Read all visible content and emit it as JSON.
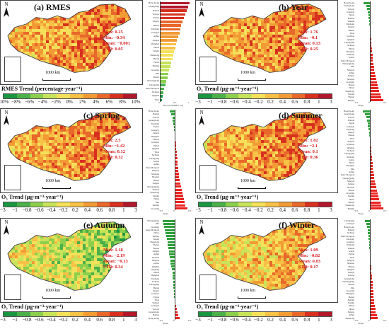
{
  "colors": {
    "trend_scale": [
      "#1a9641",
      "#4bb04a",
      "#8ccf4d",
      "#c6e35a",
      "#f5e05a",
      "#f7c046",
      "#f29b35",
      "#e8672a",
      "#d7301f",
      "#b2182b"
    ],
    "bar_positive": "#e8231f",
    "bar_negative": "#2e9e3a",
    "stats_text": "#d7191c"
  },
  "icons": {
    "north_arrow": "north-arrow-icon",
    "scale_bar": "scale-bar-icon"
  },
  "north_label": "N",
  "scale_label": "1000 km",
  "panels": [
    {
      "id": "a",
      "title": "(a) RMES",
      "stats": [
        "Max: 0.25",
        "Min: −0.34",
        "Mean: −0.001",
        "STD: 0.05"
      ],
      "legend_title": "RMES Trend (percentage·year⁻¹)",
      "ticks": [
        "−10%",
        "−8%",
        "−6%",
        "−4%",
        "−2%",
        "0%",
        "2%",
        "4%",
        "6%",
        "8%",
        "10%"
      ],
      "bar_xlabel": "The total RMES (%)",
      "bar_axis_ticks": [
        "0",
        "0.5",
        "1"
      ],
      "chart_data": {
        "type": "bar",
        "categories": [
          "Hong Kong",
          "Guangdong",
          "Hainan",
          "Taiwan",
          "Fujian",
          "Jiangxi",
          "Hunan",
          "Zhejiang",
          "Guangxi",
          "Anhui",
          "Jiangsu",
          "Shanghai",
          "Hubei",
          "Tianjin",
          "Shandong",
          "Henan",
          "Hebei",
          "Beijing",
          "Liaoning",
          "Jilin",
          "Shanxi",
          "Heilongjiang",
          "Chongqing",
          "Inner Mongolia",
          "Sichuan",
          "Qinghai",
          "Tibet"
        ],
        "values": [
          1.0,
          0.95,
          0.9,
          0.85,
          0.8,
          0.76,
          0.72,
          0.7,
          0.66,
          0.62,
          0.58,
          0.55,
          0.52,
          0.48,
          0.45,
          0.42,
          0.38,
          0.35,
          0.32,
          0.28,
          0.25,
          0.22,
          0.18,
          0.15,
          0.12,
          0.1,
          0.08
        ],
        "series_color": "gradient"
      }
    },
    {
      "id": "b",
      "title": "(b) Year",
      "stats": [
        "Max: 1.76",
        "Min: −0.1",
        "Mean: 0.13",
        "STD: 0.25"
      ],
      "legend_title": "O₃ Trend (μg·m⁻³·year⁻¹)",
      "ticks": [
        "−3",
        "−1",
        "−0.8",
        "−0.6",
        "−0.4",
        "−0.2",
        "0.2",
        "0.4",
        "0.6",
        "0.8",
        "1",
        "3"
      ],
      "bar_xlabel": "Slope",
      "bar_axis_ticks": [
        "−0.5",
        "0",
        "0.5"
      ],
      "chart_data": {
        "type": "bar",
        "categories": [
          "Hong Kong",
          "Guangdong",
          "Taiwan",
          "Guangxi",
          "Fujian",
          "Hainan",
          "Yunnan",
          "Zhejiang",
          "Jiangxi",
          "Hunan",
          "Tibet",
          "Guizhou",
          "Qinghai",
          "Chongqing",
          "Sichuan",
          "Hubei",
          "Shanghai",
          "Xinjiang",
          "Gansu",
          "Inner Mongolia",
          "Heilongjiang",
          "Jilin",
          "Ningxia",
          "Anhui",
          "Jiangsu",
          "Shaanxi",
          "Liaoning",
          "Henan",
          "Hebei",
          "Shandong",
          "Tianjin",
          "Shanxi",
          "Beijing"
        ],
        "values": [
          -0.25,
          -0.15,
          -0.12,
          -0.08,
          -0.06,
          -0.05,
          -0.03,
          -0.02,
          -0.01,
          0.02,
          0.03,
          0.04,
          0.05,
          0.06,
          0.07,
          0.08,
          0.09,
          0.1,
          0.11,
          0.12,
          0.14,
          0.16,
          0.18,
          0.2,
          0.22,
          0.25,
          0.28,
          0.3,
          0.34,
          0.38,
          0.42,
          0.45,
          0.55
        ]
      }
    },
    {
      "id": "c",
      "title": "(c) Spring",
      "stats": [
        "Max: 2.5",
        "Min: −1.42",
        "Mean: 0.12",
        "STD: 0.32"
      ],
      "legend_title": "O₃ Trend (μg·m⁻³·year⁻¹)",
      "ticks": [
        "−3",
        "−1",
        "−0.8",
        "−0.6",
        "−0.4",
        "−0.2",
        "0.2",
        "0.4",
        "0.6",
        "0.8",
        "1",
        "3"
      ],
      "bar_xlabel": "Slope",
      "bar_axis_ticks": [
        "−0.5",
        "0",
        "0.5"
      ],
      "chart_data": {
        "type": "bar",
        "categories": [
          "Hong Kong",
          "Hainan",
          "Taiwan",
          "Guangdong",
          "Zhejiang",
          "Fujian",
          "Guangxi",
          "Jiangxi",
          "Shanghai",
          "Hunan",
          "Guizhou",
          "Hubei",
          "Qinghai",
          "Tibet",
          "Sichuan",
          "Chongqing",
          "Gansu",
          "Anhui",
          "Inner Mongolia",
          "Ningxia",
          "Xinjiang",
          "Shaanxi",
          "Henan",
          "Jiangsu",
          "Heilongjiang",
          "Yunnan",
          "Shandong",
          "Tianjin",
          "Hebei",
          "Jilin",
          "Beijing",
          "Liaoning"
        ],
        "values": [
          -0.2,
          -0.14,
          -0.1,
          -0.08,
          -0.06,
          -0.04,
          -0.02,
          0.02,
          0.03,
          0.04,
          0.05,
          0.06,
          0.07,
          0.08,
          0.09,
          0.1,
          0.11,
          0.12,
          0.13,
          0.14,
          0.16,
          0.18,
          0.2,
          0.22,
          0.25,
          0.28,
          0.3,
          0.33,
          0.36,
          0.4,
          0.44,
          0.5
        ]
      }
    },
    {
      "id": "d",
      "title": "(d) Summer",
      "stats": [
        "Max: 1.82",
        "Min: −2.1",
        "Mean: 0.1",
        "STD: 0.36"
      ],
      "legend_title": "O₃ Trend (μg·m⁻³·year⁻¹)",
      "ticks": [
        "−3",
        "−1",
        "−0.8",
        "−0.6",
        "−0.4",
        "−0.2",
        "0.2",
        "0.4",
        "0.6",
        "0.8",
        "1",
        "3"
      ],
      "bar_xlabel": "Slope",
      "bar_axis_ticks": [
        "−0.5",
        "0",
        "0.5"
      ],
      "chart_data": {
        "type": "bar",
        "categories": [
          "Hong Kong",
          "Guangdong",
          "Taiwan",
          "Hainan",
          "Fujian",
          "Guangxi",
          "Zhejiang",
          "Jiangxi",
          "Hunan",
          "Tibet",
          "Yunnan",
          "Guizhou",
          "Qinghai",
          "Sichuan",
          "Chongqing",
          "Xinjiang",
          "Gansu",
          "Hubei",
          "Shanghai",
          "Jilin",
          "Anhui",
          "Inner Mongolia",
          "Heilongjiang",
          "Ningxia",
          "Jiangsu",
          "Shaanxi",
          "Henan",
          "Liaoning",
          "Tianjin",
          "Hebei",
          "Shanxi",
          "Shandong",
          "Beijing"
        ],
        "values": [
          -0.3,
          -0.2,
          -0.15,
          -0.12,
          -0.1,
          -0.08,
          -0.06,
          -0.04,
          -0.02,
          0.02,
          0.03,
          0.04,
          0.05,
          0.06,
          0.07,
          0.08,
          0.09,
          0.1,
          0.11,
          0.12,
          0.14,
          0.16,
          0.18,
          0.2,
          0.22,
          0.25,
          0.28,
          0.3,
          0.34,
          0.38,
          0.42,
          0.46,
          0.55
        ]
      }
    },
    {
      "id": "e",
      "title": "(e) Autumn",
      "stats": [
        "Max: 1.18",
        "Min: −2.19",
        "Mean: −0.13",
        "STD: 0.34"
      ],
      "legend_title": "O₃ Trend (μg·m⁻³·year⁻¹)",
      "ticks": [
        "−3",
        "−1",
        "−0.8",
        "−0.6",
        "−0.4",
        "−0.2",
        "0.2",
        "0.4",
        "0.6",
        "0.8",
        "1",
        "3"
      ],
      "bar_xlabel": "Slope",
      "bar_axis_ticks": [
        "−0.5",
        "0",
        "0.5"
      ],
      "chart_data": {
        "type": "bar",
        "categories": [
          "Heilongjiang",
          "Jilin",
          "Liaoning",
          "Inner Mongolia",
          "Hebei",
          "Beijing",
          "Tianjin",
          "Shandong",
          "Shanxi",
          "Henan",
          "Jiangsu",
          "Anhui",
          "Shaanxi",
          "Ningxia",
          "Gansu",
          "Qinghai",
          "Xinjiang",
          "Hubei",
          "Shanghai",
          "Zhejiang",
          "Sichuan",
          "Chongqing",
          "Hunan",
          "Jiangxi",
          "Guizhou",
          "Fujian",
          "Tibet",
          "Yunnan",
          "Guangxi",
          "Taiwan",
          "Guangdong",
          "Hainan",
          "Hong Kong"
        ],
        "values": [
          -0.5,
          -0.45,
          -0.42,
          -0.4,
          -0.36,
          -0.34,
          -0.32,
          -0.3,
          -0.28,
          -0.26,
          -0.24,
          -0.22,
          -0.2,
          -0.18,
          -0.16,
          -0.14,
          -0.12,
          -0.1,
          -0.09,
          -0.08,
          -0.07,
          -0.06,
          -0.05,
          -0.04,
          -0.03,
          -0.02,
          0.02,
          0.04,
          0.06,
          0.08,
          0.1,
          0.14,
          0.2
        ]
      }
    },
    {
      "id": "f",
      "title": "(f) Winter",
      "stats": [
        "Max: 1.09",
        "Min: −0.82",
        "Mean: 0.03",
        "STD: 0.17"
      ],
      "legend_title": "O₃ Trend (μg·m⁻³·year⁻¹)",
      "ticks": [
        "−3",
        "−1",
        "−0.8",
        "−0.6",
        "−0.4",
        "−0.2",
        "0.2",
        "0.4",
        "0.6",
        "0.8",
        "1",
        "3"
      ],
      "bar_xlabel": "Slope",
      "bar_axis_ticks": [
        "−0.5",
        "0",
        "0.5"
      ],
      "chart_data": {
        "type": "bar",
        "categories": [
          "Chongqing",
          "Guangxi",
          "Hong Kong",
          "Hainan",
          "Sichuan",
          "Inner Mongolia",
          "Zhejiang",
          "Guizhou",
          "Xinjiang",
          "Yunnan",
          "Gansu",
          "Fujian",
          "Tibet",
          "Ningxia",
          "Shaanxi",
          "Hunan",
          "Qinghai",
          "Jiangxi",
          "Taiwan",
          "Guangdong",
          "Heilongjiang",
          "Shanxi",
          "Jilin",
          "Liaoning",
          "Shanghai",
          "Henan",
          "Beijing",
          "Tianjin",
          "Hubei",
          "Hebei",
          "Jiangsu",
          "Anhui",
          "Shandong"
        ],
        "values": [
          -0.2,
          -0.15,
          -0.12,
          -0.1,
          -0.08,
          -0.06,
          -0.05,
          -0.04,
          -0.03,
          -0.02,
          -0.01,
          0.01,
          0.02,
          0.03,
          0.04,
          0.05,
          0.06,
          0.07,
          0.08,
          0.09,
          0.1,
          0.11,
          0.12,
          0.13,
          0.14,
          0.15,
          0.16,
          0.18,
          0.2,
          0.22,
          0.24,
          0.28,
          0.32
        ]
      }
    }
  ]
}
